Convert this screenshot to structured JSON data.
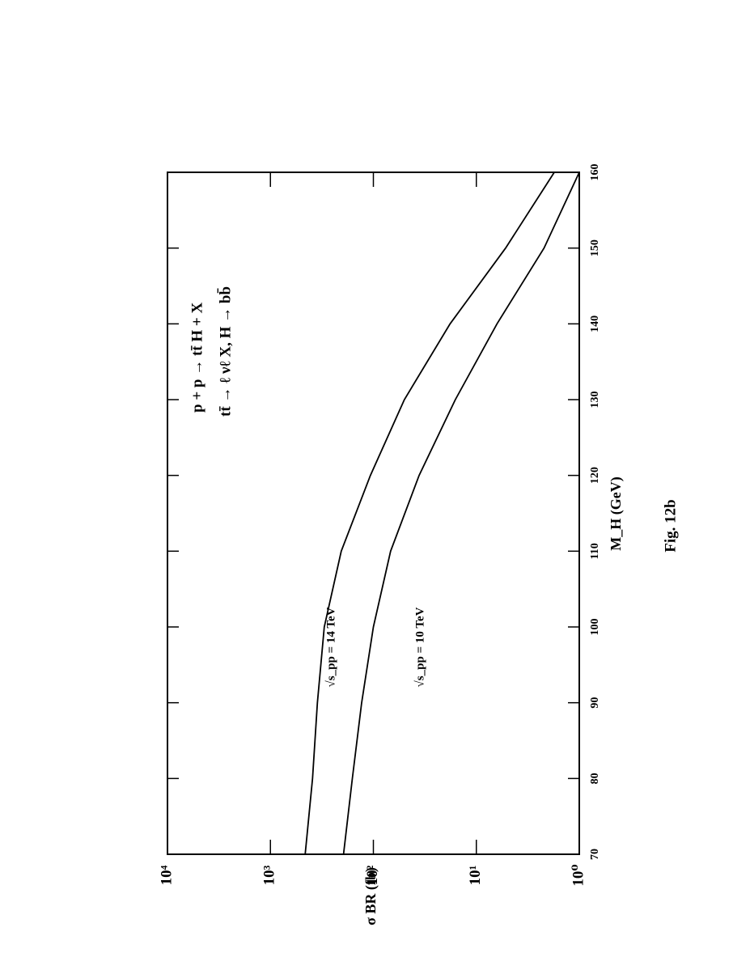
{
  "chart_data": {
    "type": "line",
    "title_lines": [
      "p + p → tt̄ H + X",
      "tt̄ → ℓ νℓ X,    H → bb̄"
    ],
    "xlabel": "M_H (GeV)",
    "ylabel": "σ BR (fb)",
    "caption": "Fig. 12b",
    "x": [
      70,
      80,
      90,
      100,
      110,
      120,
      130,
      140,
      150,
      160
    ],
    "series": [
      {
        "name": "√s_pp = 14 TeV",
        "color": "#000000",
        "values": [
          460,
          390,
          350,
          300,
          205,
          107,
          50,
          18,
          5.2,
          1.75
        ]
      },
      {
        "name": "√s_pp = 10 TeV",
        "color": "#000000",
        "values": [
          195,
          160,
          130,
          100,
          68,
          36,
          16,
          6.3,
          2.2,
          1.0
        ]
      }
    ],
    "xlim": [
      70,
      160
    ],
    "xticks": [
      70,
      80,
      90,
      100,
      110,
      120,
      130,
      140,
      150,
      160
    ],
    "ylim": [
      1,
      10000
    ],
    "yticks": [
      {
        "value": 1,
        "label": "10⁰"
      },
      {
        "value": 10,
        "label": "10¹"
      },
      {
        "value": 100,
        "label": "10²"
      },
      {
        "value": 1000,
        "label": "10³"
      },
      {
        "value": 10000,
        "label": "10⁴"
      }
    ],
    "log_y": true,
    "grid": false,
    "legend": "on-curves"
  }
}
